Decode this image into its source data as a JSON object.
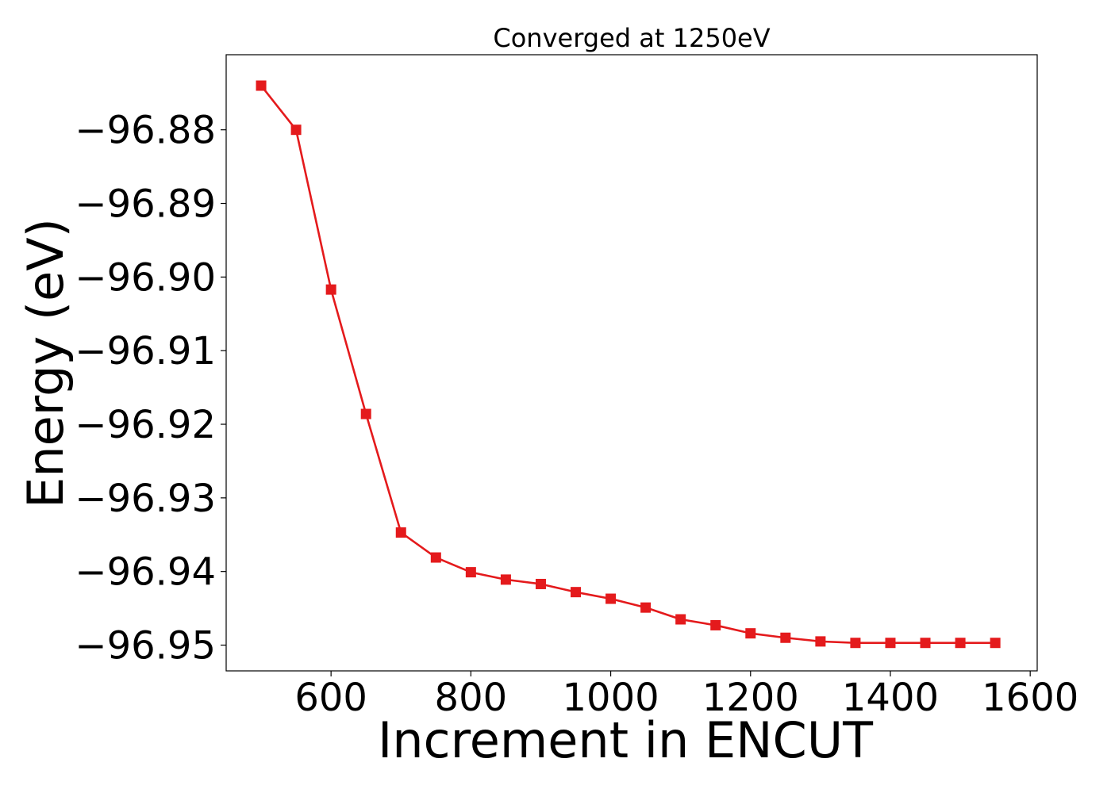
{
  "chart_data": {
    "type": "line",
    "title": "Converged at 1250eV",
    "xlabel": "Increment in ENCUT",
    "ylabel": "Energy (eV)",
    "xlim": [
      450,
      1610
    ],
    "ylim": [
      -96.9535,
      -96.8698
    ],
    "x_ticks": [
      600,
      800,
      1000,
      1200,
      1400,
      1600
    ],
    "x_tick_labels": [
      "600",
      "800",
      "1000",
      "1200",
      "1400",
      "1600"
    ],
    "y_ticks": [
      -96.88,
      -96.89,
      -96.9,
      -96.91,
      -96.92,
      -96.93,
      -96.94,
      -96.95
    ],
    "y_tick_labels": [
      "−96.88",
      "−96.89",
      "−96.90",
      "−96.91",
      "−96.92",
      "−96.93",
      "−96.94",
      "−96.95"
    ],
    "grid": false,
    "legend": "none",
    "series": [
      {
        "color": "#e41a1c",
        "marker": "square",
        "x": [
          500,
          550,
          600,
          650,
          700,
          750,
          800,
          850,
          900,
          950,
          1000,
          1050,
          1100,
          1150,
          1200,
          1250,
          1300,
          1350,
          1400,
          1450,
          1500,
          1550
        ],
        "y": [
          -96.874,
          -96.88,
          -96.9017,
          -96.9186,
          -96.9347,
          -96.9381,
          -96.9401,
          -96.9411,
          -96.9417,
          -96.9428,
          -96.9437,
          -96.9449,
          -96.9465,
          -96.9473,
          -96.9484,
          -96.949,
          -96.9495,
          -96.9497,
          -96.9497,
          -96.9497,
          -96.9497,
          -96.9497
        ]
      }
    ]
  }
}
